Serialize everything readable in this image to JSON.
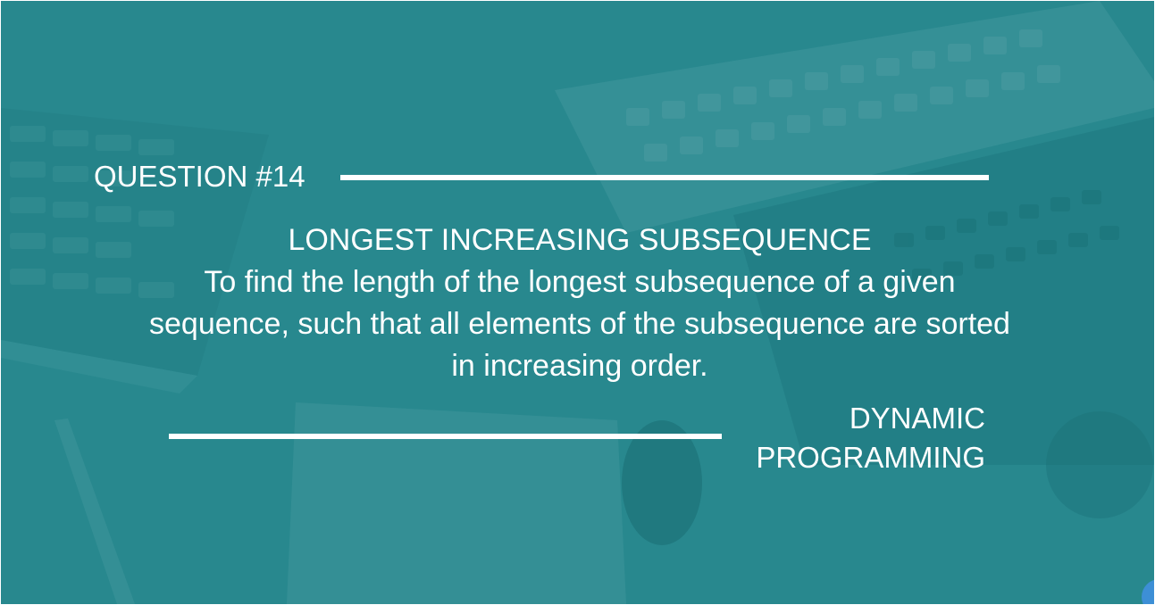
{
  "slide": {
    "question_label": "QUESTION #14",
    "topic_title": "LONGEST INCREASING SUBSEQUENCE",
    "description": "To find the length of the longest subsequence of a given sequence, such that all elements of the subsequence are sorted in increasing order.",
    "category_line1": "DYNAMIC",
    "category_line2": "PROGRAMMING"
  },
  "colors": {
    "background_teal": "#2f8e93",
    "text": "#ffffff",
    "accent_dot": "#3d8fd6"
  }
}
